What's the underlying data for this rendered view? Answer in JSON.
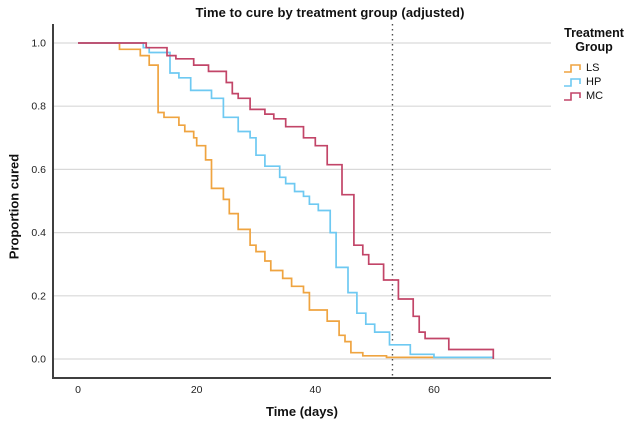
{
  "chart_data": {
    "type": "step-line",
    "subtype": "kaplan-meier-survival",
    "title": "Time to cure by treatment group (adjusted)",
    "x_axis": {
      "label": "Time (days)",
      "ticks": [
        0,
        20,
        40,
        60
      ],
      "range": [
        0,
        80
      ]
    },
    "y_axis": {
      "label": "Proportion cured",
      "ticks": [
        "1.0",
        "0.8",
        "0.6",
        "0.4",
        "0.2",
        "0.0"
      ],
      "range": [
        0,
        1
      ]
    },
    "grid": "horizontal",
    "reference_line": {
      "axis": "x",
      "day": 53,
      "style": "dotted",
      "color": "#4d4d4d"
    },
    "legend": {
      "title": "Treatment Group",
      "position": "right"
    },
    "axis_color": "#3f3f3f",
    "gridline_color": "#d9d9d9",
    "series": [
      {
        "name": "LS",
        "color": "#EFA440",
        "points": [
          [
            0,
            1.0
          ],
          [
            7,
            0.98
          ],
          [
            10.5,
            0.96
          ],
          [
            12,
            0.93
          ],
          [
            13.5,
            0.78
          ],
          [
            14.5,
            0.765
          ],
          [
            17,
            0.74
          ],
          [
            18,
            0.72
          ],
          [
            19.5,
            0.7
          ],
          [
            20,
            0.675
          ],
          [
            21.5,
            0.63
          ],
          [
            22.5,
            0.54
          ],
          [
            24.5,
            0.505
          ],
          [
            25.5,
            0.46
          ],
          [
            27,
            0.41
          ],
          [
            29,
            0.36
          ],
          [
            30,
            0.34
          ],
          [
            31.5,
            0.31
          ],
          [
            32.5,
            0.28
          ],
          [
            34.5,
            0.255
          ],
          [
            36,
            0.23
          ],
          [
            38,
            0.21
          ],
          [
            39,
            0.155
          ],
          [
            42,
            0.12
          ],
          [
            44,
            0.075
          ],
          [
            45,
            0.055
          ],
          [
            46,
            0.02
          ],
          [
            48,
            0.01
          ],
          [
            52,
            0.005
          ],
          [
            70,
            0.005
          ]
        ]
      },
      {
        "name": "HP",
        "color": "#6EC9F2",
        "points": [
          [
            0,
            1.0
          ],
          [
            11,
            0.985
          ],
          [
            12,
            0.97
          ],
          [
            15.5,
            0.905
          ],
          [
            17,
            0.89
          ],
          [
            19,
            0.85
          ],
          [
            22.5,
            0.825
          ],
          [
            24.5,
            0.765
          ],
          [
            27,
            0.72
          ],
          [
            29,
            0.7
          ],
          [
            30,
            0.645
          ],
          [
            31.5,
            0.61
          ],
          [
            34,
            0.575
          ],
          [
            35,
            0.555
          ],
          [
            36.5,
            0.53
          ],
          [
            38,
            0.515
          ],
          [
            39,
            0.49
          ],
          [
            40.5,
            0.47
          ],
          [
            42.5,
            0.4
          ],
          [
            43.5,
            0.29
          ],
          [
            45.5,
            0.21
          ],
          [
            47,
            0.145
          ],
          [
            48.5,
            0.11
          ],
          [
            50,
            0.085
          ],
          [
            52.5,
            0.045
          ],
          [
            56,
            0.015
          ],
          [
            60,
            0.005
          ],
          [
            70,
            0.005
          ]
        ]
      },
      {
        "name": "MC",
        "color": "#C24568",
        "points": [
          [
            0,
            1.0
          ],
          [
            11.5,
            0.985
          ],
          [
            15,
            0.96
          ],
          [
            16.5,
            0.95
          ],
          [
            19.5,
            0.93
          ],
          [
            22,
            0.91
          ],
          [
            25,
            0.875
          ],
          [
            26,
            0.84
          ],
          [
            27,
            0.825
          ],
          [
            29,
            0.79
          ],
          [
            31.5,
            0.775
          ],
          [
            33,
            0.76
          ],
          [
            35,
            0.735
          ],
          [
            38,
            0.7
          ],
          [
            40,
            0.675
          ],
          [
            42,
            0.615
          ],
          [
            44.5,
            0.52
          ],
          [
            46.5,
            0.36
          ],
          [
            48,
            0.33
          ],
          [
            49,
            0.3
          ],
          [
            51.5,
            0.25
          ],
          [
            54,
            0.19
          ],
          [
            56.5,
            0.135
          ],
          [
            57.5,
            0.085
          ],
          [
            58.5,
            0.065
          ],
          [
            62.5,
            0.03
          ],
          [
            70,
            0.0
          ]
        ]
      }
    ]
  }
}
